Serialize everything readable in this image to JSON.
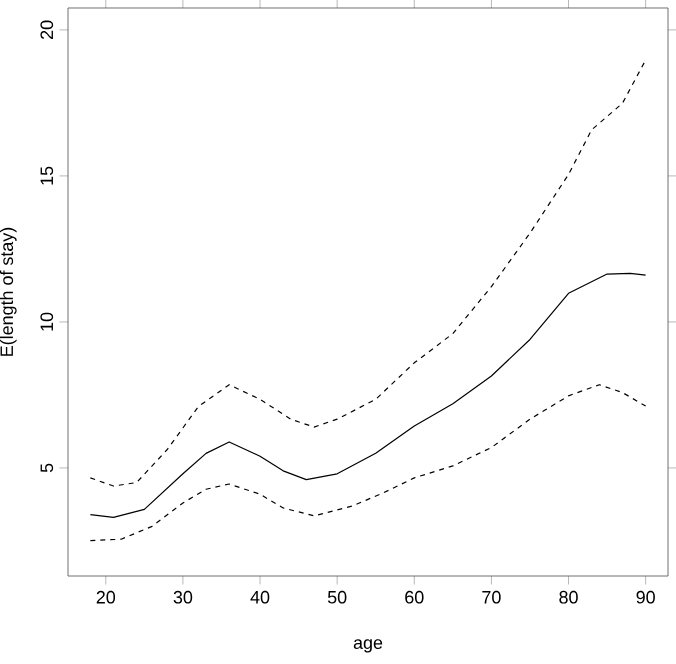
{
  "chart_data": {
    "type": "line",
    "xlabel": "age",
    "ylabel": "E(length of stay)",
    "xlim": [
      15.1,
      92.9
    ],
    "ylim": [
      1.3,
      20.75
    ],
    "xticks": [
      20,
      30,
      40,
      50,
      60,
      70,
      80,
      90
    ],
    "yticks": [
      5,
      10,
      15,
      20
    ],
    "marker": "none",
    "series": [
      {
        "color": "#000000",
        "line_style": "solid",
        "x": [
          18,
          21,
          25,
          30,
          33,
          36,
          40,
          43,
          46,
          50,
          55,
          60,
          65,
          70,
          75,
          80,
          85,
          88,
          90
        ],
        "values": [
          3.4,
          3.31,
          3.58,
          4.8,
          5.5,
          5.89,
          5.4,
          4.9,
          4.6,
          4.8,
          5.5,
          6.44,
          7.2,
          8.15,
          9.4,
          10.98,
          11.64,
          11.66,
          11.6
        ]
      },
      {
        "color": "#000000",
        "line_style": "dashed",
        "x": [
          18,
          21,
          24,
          28,
          32,
          36,
          40,
          44,
          47,
          50,
          55,
          60,
          65,
          70,
          75,
          80,
          83,
          87,
          90
        ],
        "values": [
          4.66,
          4.38,
          4.5,
          5.64,
          7.1,
          7.85,
          7.35,
          6.67,
          6.4,
          6.67,
          7.35,
          8.6,
          9.6,
          11.21,
          13.04,
          15.05,
          16.58,
          17.49,
          18.97
        ]
      },
      {
        "color": "#000000",
        "line_style": "dashed",
        "x": [
          18,
          22,
          26,
          30,
          33,
          36,
          40,
          43,
          47,
          52,
          56,
          60,
          65,
          70,
          75,
          80,
          84,
          87,
          90
        ],
        "values": [
          2.51,
          2.56,
          3.0,
          3.8,
          4.27,
          4.45,
          4.1,
          3.63,
          3.36,
          3.7,
          4.15,
          4.66,
          5.07,
          5.7,
          6.67,
          7.47,
          7.85,
          7.58,
          7.12
        ]
      }
    ]
  }
}
